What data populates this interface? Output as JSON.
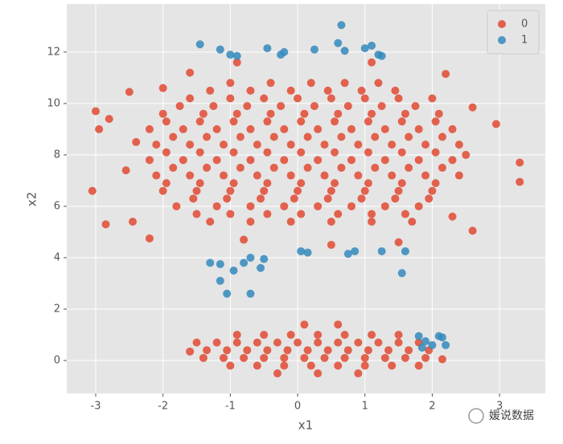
{
  "chart_data": {
    "type": "scatter",
    "x_label": "x1",
    "y_label": "x2",
    "xlim": [
      -3.43,
      3.68
    ],
    "ylim": [
      -1.28,
      13.87
    ],
    "xticks": [
      -3,
      -2,
      -1,
      0,
      1,
      2,
      3
    ],
    "yticks": [
      0,
      2,
      4,
      6,
      8,
      10,
      12
    ],
    "grid": true,
    "legend": "upper right",
    "watermark": "媛说数据",
    "series": [
      {
        "name": "0",
        "color": "#e24a33",
        "x": [
          -3.05,
          -2.85,
          -3.0,
          -2.95,
          -2.8,
          -2.55,
          -2.5,
          -2.45,
          2.95,
          3.3,
          3.3,
          2.6,
          2.6,
          -2.0,
          2.2,
          1.1,
          -0.9,
          -1.6,
          -2.2,
          1.5,
          -0.8,
          0.5,
          2.3,
          -2.4,
          2.5,
          -1.0,
          -0.4,
          0.2,
          0.7,
          1.2,
          -1.3,
          -0.7,
          -0.1,
          0.45,
          0.95,
          1.45,
          -1.6,
          -1.0,
          -0.5,
          0.0,
          0.5,
          1.0,
          1.5,
          2.0,
          -1.75,
          -1.25,
          -0.75,
          -0.25,
          0.25,
          0.75,
          1.25,
          1.75,
          -2.0,
          -1.4,
          -0.9,
          -0.4,
          0.1,
          0.6,
          1.1,
          1.6,
          2.1,
          -1.95,
          -1.45,
          -0.95,
          -0.45,
          0.05,
          0.55,
          1.05,
          1.55,
          2.05,
          -2.2,
          -1.7,
          -1.2,
          -0.7,
          -0.2,
          0.3,
          0.8,
          1.3,
          1.8,
          2.3,
          -1.85,
          -1.35,
          -0.85,
          -0.35,
          0.15,
          0.65,
          1.15,
          1.65,
          2.15,
          -2.1,
          -1.6,
          -1.1,
          -0.6,
          -0.1,
          0.4,
          0.9,
          1.4,
          1.9,
          2.4,
          -1.95,
          -1.45,
          -0.95,
          -0.45,
          0.05,
          0.55,
          1.05,
          1.55,
          2.05,
          -2.2,
          -1.7,
          -1.2,
          -0.7,
          -0.2,
          0.3,
          0.8,
          1.3,
          1.8,
          2.3,
          -1.85,
          -1.35,
          -0.85,
          -0.35,
          0.15,
          0.65,
          1.15,
          1.65,
          2.15,
          -2.1,
          -1.6,
          -1.1,
          -0.6,
          -0.1,
          0.4,
          0.9,
          1.4,
          1.9,
          2.4,
          -1.95,
          -1.45,
          -0.95,
          -0.45,
          0.05,
          0.55,
          1.05,
          1.55,
          2.05,
          -2.0,
          -1.5,
          -1.0,
          -0.5,
          0.0,
          0.5,
          1.0,
          1.5,
          2.0,
          -1.55,
          -1.05,
          -0.55,
          -0.05,
          0.45,
          0.95,
          1.45,
          1.95,
          -1.8,
          -1.2,
          -0.7,
          -0.2,
          0.3,
          0.8,
          1.3,
          1.8,
          -1.5,
          -1.0,
          -0.45,
          0.05,
          0.6,
          1.1,
          1.6,
          -1.3,
          -0.7,
          -0.1,
          0.5,
          1.1,
          1.7,
          0.1,
          0.6,
          -0.9,
          -0.5,
          -0.1,
          0.3,
          0.7,
          1.1,
          1.5,
          -1.5,
          -1.2,
          -0.9,
          -0.6,
          -0.3,
          0.0,
          0.3,
          0.6,
          0.9,
          1.2,
          1.5,
          1.8,
          -1.35,
          -1.05,
          -0.75,
          -0.45,
          -0.15,
          0.15,
          0.45,
          0.75,
          1.05,
          1.35,
          1.65,
          1.95,
          -1.4,
          -1.1,
          -0.8,
          -0.5,
          -0.2,
          0.1,
          0.4,
          0.7,
          1.0,
          1.3,
          1.6,
          1.9,
          -1.0,
          -0.6,
          -0.2,
          0.2,
          0.6,
          1.0,
          1.4,
          1.8,
          -0.3,
          0.3,
          0.9,
          -1.6,
          2.15
        ],
        "y": [
          6.6,
          5.3,
          9.7,
          9.0,
          9.4,
          7.4,
          10.45,
          5.4,
          9.2,
          7.7,
          6.95,
          5.05,
          9.85,
          10.6,
          11.15,
          11.6,
          11.6,
          11.2,
          4.75,
          4.6,
          4.7,
          4.5,
          5.6,
          8.5,
          8.0,
          10.8,
          10.8,
          10.8,
          10.8,
          10.8,
          10.5,
          10.5,
          10.5,
          10.5,
          10.5,
          10.5,
          10.2,
          10.2,
          10.2,
          10.2,
          10.2,
          10.2,
          10.2,
          10.2,
          9.9,
          9.9,
          9.9,
          9.9,
          9.9,
          9.9,
          9.9,
          9.9,
          9.6,
          9.6,
          9.6,
          9.6,
          9.6,
          9.6,
          9.6,
          9.6,
          9.6,
          9.3,
          9.3,
          9.3,
          9.3,
          9.3,
          9.3,
          9.3,
          9.3,
          9.3,
          9.0,
          9.0,
          9.0,
          9.0,
          9.0,
          9.0,
          9.0,
          9.0,
          9.0,
          9.0,
          8.7,
          8.7,
          8.7,
          8.7,
          8.7,
          8.7,
          8.7,
          8.7,
          8.7,
          8.4,
          8.4,
          8.4,
          8.4,
          8.4,
          8.4,
          8.4,
          8.4,
          8.4,
          8.4,
          8.1,
          8.1,
          8.1,
          8.1,
          8.1,
          8.1,
          8.1,
          8.1,
          8.1,
          7.8,
          7.8,
          7.8,
          7.8,
          7.8,
          7.8,
          7.8,
          7.8,
          7.8,
          7.8,
          7.5,
          7.5,
          7.5,
          7.5,
          7.5,
          7.5,
          7.5,
          7.5,
          7.5,
          7.2,
          7.2,
          7.2,
          7.2,
          7.2,
          7.2,
          7.2,
          7.2,
          7.2,
          7.2,
          6.9,
          6.9,
          6.9,
          6.9,
          6.9,
          6.9,
          6.9,
          6.9,
          6.9,
          6.6,
          6.6,
          6.6,
          6.6,
          6.6,
          6.6,
          6.6,
          6.6,
          6.6,
          6.3,
          6.3,
          6.3,
          6.3,
          6.3,
          6.3,
          6.3,
          6.3,
          6.0,
          6.0,
          6.0,
          6.0,
          6.0,
          6.0,
          6.0,
          6.0,
          5.7,
          5.7,
          5.7,
          5.7,
          5.7,
          5.7,
          5.7,
          5.4,
          5.4,
          5.4,
          5.4,
          5.4,
          5.4,
          1.4,
          1.4,
          1.0,
          1.0,
          1.0,
          1.0,
          1.0,
          1.0,
          1.0,
          0.7,
          0.7,
          0.7,
          0.7,
          0.7,
          0.7,
          0.7,
          0.7,
          0.7,
          0.7,
          0.7,
          0.7,
          0.4,
          0.4,
          0.4,
          0.4,
          0.4,
          0.4,
          0.4,
          0.4,
          0.4,
          0.4,
          0.4,
          0.4,
          0.1,
          0.1,
          0.1,
          0.1,
          0.1,
          0.1,
          0.1,
          0.1,
          0.1,
          0.1,
          0.1,
          0.1,
          -0.2,
          -0.2,
          -0.2,
          -0.2,
          -0.2,
          -0.2,
          -0.2,
          -0.2,
          -0.5,
          -0.5,
          -0.5,
          0.35,
          0.05
        ]
      },
      {
        "name": "1",
        "color": "#348abd",
        "x": [
          -1.45,
          -1.15,
          -1.0,
          -0.9,
          -0.45,
          -0.25,
          -0.2,
          0.25,
          0.6,
          0.65,
          0.7,
          1.0,
          1.1,
          1.2,
          1.25,
          -1.3,
          -1.15,
          -1.15,
          -1.05,
          -0.95,
          -0.8,
          -0.7,
          -0.7,
          -0.55,
          -0.5,
          0.05,
          0.15,
          0.75,
          0.85,
          1.25,
          1.6,
          1.55,
          1.8,
          1.9,
          2.1,
          2.15,
          2.0,
          2.2,
          1.85
        ],
        "y": [
          12.3,
          12.1,
          11.9,
          11.85,
          12.15,
          11.9,
          12.0,
          12.1,
          12.35,
          13.05,
          12.05,
          12.15,
          12.25,
          11.9,
          11.85,
          3.8,
          3.75,
          3.1,
          2.6,
          3.5,
          3.8,
          4.0,
          2.6,
          3.6,
          3.95,
          4.25,
          4.2,
          4.15,
          4.25,
          4.25,
          4.25,
          3.4,
          0.95,
          0.75,
          0.95,
          0.9,
          0.6,
          0.6,
          0.5
        ]
      }
    ]
  }
}
